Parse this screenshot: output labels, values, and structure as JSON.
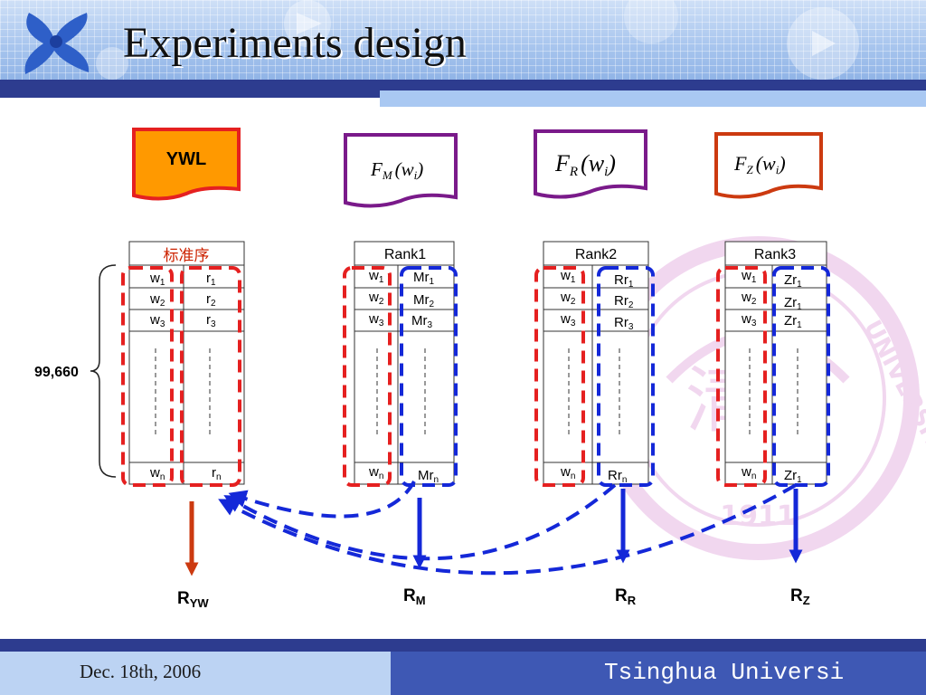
{
  "slide": {
    "title": "Experiments design",
    "footer_date": "Dec. 18th, 2006",
    "footer_org": "Tsinghua Universi"
  },
  "watermark": {
    "text": "UNIVERSITY",
    "year": "1911",
    "center_chars": "清华"
  },
  "colors": {
    "red_dash": "#e52020",
    "blue_dash": "#1428d8",
    "ywl_fill": "#ff9900",
    "fm_border": "#7a1a8a",
    "fr_border": "#7a1a8a",
    "fz_border": "#cc3a10",
    "ryw_arrow": "#cc3a10",
    "blue_arrow": "#1428d8"
  },
  "sources": {
    "ywl": "YWL",
    "fm_func": "F",
    "fm_sub": "M",
    "fm_arg": "(w",
    "fm_arg_sub": "i",
    "fm_close": ")",
    "fr_func": "F",
    "fr_sub": "R",
    "fr_arg": "(w",
    "fr_arg_sub": "i",
    "fr_close": ")",
    "fz_func": "F",
    "fz_sub": "Z",
    "fz_arg": "(w",
    "fz_arg_sub": "i",
    "fz_close": ")"
  },
  "tables": {
    "std": {
      "header": "标准序",
      "rows": [
        {
          "w": "w",
          "ws": "1",
          "r": "r",
          "rs": "1"
        },
        {
          "w": "w",
          "ws": "2",
          "r": "r",
          "rs": "2"
        },
        {
          "w": "w",
          "ws": "3",
          "r": "r",
          "rs": "3"
        },
        {
          "w": "w",
          "ws": "n",
          "r": "r",
          "rs": "n"
        }
      ]
    },
    "rank1": {
      "header": "Rank1",
      "rows": [
        {
          "w": "w",
          "ws": "1",
          "r": "Mr",
          "rs": "1"
        },
        {
          "w": "w",
          "ws": "2",
          "r": "Mr",
          "rs": "2"
        },
        {
          "w": "w",
          "ws": "3",
          "r": "Mr",
          "rs": "3"
        },
        {
          "w": "w",
          "ws": "n",
          "r": "Mr",
          "rs": "n"
        }
      ]
    },
    "rank2": {
      "header": "Rank2",
      "rows": [
        {
          "w": "w",
          "ws": "1",
          "r": "Rr",
          "rs": "1"
        },
        {
          "w": "w",
          "ws": "2",
          "r": "Rr",
          "rs": "2"
        },
        {
          "w": "w",
          "ws": "3",
          "r": "Rr",
          "rs": "3"
        },
        {
          "w": "w",
          "ws": "n",
          "r": "Rr",
          "rs": "n"
        }
      ]
    },
    "rank3": {
      "header": "Rank3",
      "rows": [
        {
          "w": "w",
          "ws": "1",
          "r": "Zr",
          "rs": "1"
        },
        {
          "w": "w",
          "ws": "2",
          "r": "Zr",
          "rs": "1"
        },
        {
          "w": "w",
          "ws": "3",
          "r": "Zr",
          "rs": "1"
        },
        {
          "w": "w",
          "ws": "n",
          "r": "Zr",
          "rs": "1"
        }
      ]
    }
  },
  "brace_label": "99,660",
  "results": [
    {
      "main": "R",
      "sub": "YW"
    },
    {
      "main": "R",
      "sub": "M"
    },
    {
      "main": "R",
      "sub": "R"
    },
    {
      "main": "R",
      "sub": "Z"
    }
  ]
}
